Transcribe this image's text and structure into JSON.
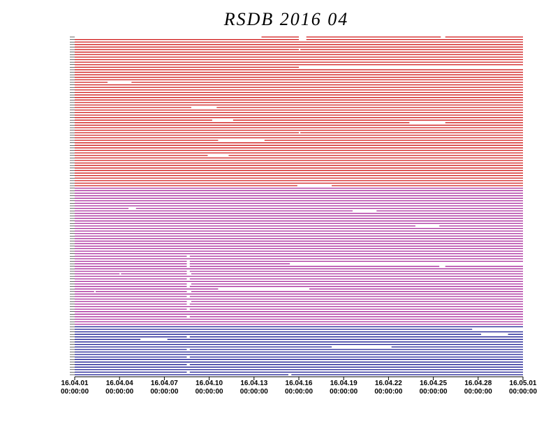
{
  "chart_data": {
    "type": "timeline",
    "title": "RSDB  2016  04",
    "xlim": [
      0,
      30
    ],
    "xticks": [
      {
        "value": 0,
        "label": "16.04.01"
      },
      {
        "value": 3,
        "label": "16.04.04"
      },
      {
        "value": 6,
        "label": "16.04.07"
      },
      {
        "value": 9,
        "label": "16.04.10"
      },
      {
        "value": 12,
        "label": "16.04.13"
      },
      {
        "value": 15,
        "label": "16.04.16"
      },
      {
        "value": 18,
        "label": "16.04.19"
      },
      {
        "value": 21,
        "label": "16.04.22"
      },
      {
        "value": 24,
        "label": "16.04.25"
      },
      {
        "value": 27,
        "label": "16.04.28"
      },
      {
        "value": 30,
        "label": "16.05.01"
      }
    ],
    "xtick_times": [
      "00:00:00",
      "00:00:00",
      "00:00:00",
      "00:00:00",
      "00:00:00",
      "00:00:00",
      "00:00:00",
      "00:00:00",
      "00:00:00",
      "00:00:00",
      "00:00:00"
    ],
    "groups": [
      {
        "color": "#d01818",
        "rows": [
          [
            [
              12.5,
              15
            ],
            [
              15.5,
              24.5
            ],
            [
              24.8,
              30
            ]
          ],
          [
            [
              0,
              15
            ],
            [
              15.5,
              30
            ]
          ],
          [
            [
              0,
              30
            ]
          ],
          [
            [
              0,
              30
            ]
          ],
          [
            [
              0,
              30
            ]
          ],
          [
            [
              0,
              15
            ],
            [
              15.1,
              30
            ]
          ],
          [
            [
              0,
              30
            ]
          ],
          [
            [
              0,
              30
            ]
          ],
          [
            [
              0,
              30
            ]
          ],
          [
            [
              0,
              30
            ]
          ],
          [
            [
              0,
              30
            ]
          ],
          [
            [
              0,
              30
            ]
          ],
          [
            [
              0,
              15
            ]
          ],
          [
            [
              0,
              30
            ]
          ],
          [
            [
              0,
              30
            ]
          ],
          [
            [
              0,
              30
            ]
          ],
          [
            [
              0,
              30
            ]
          ],
          [
            [
              0,
              30
            ]
          ],
          [
            [
              0,
              2.2
            ],
            [
              3.8,
              30
            ]
          ],
          [
            [
              0,
              30
            ]
          ],
          [
            [
              0,
              30
            ]
          ],
          [
            [
              0,
              30
            ]
          ],
          [
            [
              0,
              30
            ]
          ],
          [
            [
              0,
              30
            ]
          ],
          [
            [
              0,
              30
            ]
          ],
          [
            [
              0,
              30
            ]
          ],
          [
            [
              0,
              30
            ]
          ],
          [
            [
              0,
              30
            ]
          ],
          [
            [
              0,
              7.8
            ],
            [
              9.5,
              30
            ]
          ],
          [
            [
              0,
              30
            ]
          ],
          [
            [
              0,
              30
            ]
          ],
          [
            [
              0,
              30
            ]
          ],
          [
            [
              0,
              30
            ]
          ],
          [
            [
              0,
              9.2
            ],
            [
              10.6,
              30
            ]
          ],
          [
            [
              0,
              22.4
            ],
            [
              24.8,
              30
            ]
          ],
          [
            [
              0,
              30
            ]
          ],
          [
            [
              0,
              30
            ]
          ],
          [
            [
              0,
              30
            ]
          ],
          [
            [
              0,
              15
            ],
            [
              15.1,
              30
            ]
          ],
          [
            [
              0,
              30
            ]
          ],
          [
            [
              0,
              30
            ]
          ],
          [
            [
              0,
              9.6
            ],
            [
              12.7,
              30
            ]
          ],
          [
            [
              0,
              30
            ]
          ],
          [
            [
              0,
              30
            ]
          ],
          [
            [
              0,
              30
            ]
          ],
          [
            [
              0,
              30
            ]
          ],
          [
            [
              0,
              30
            ]
          ],
          [
            [
              0,
              8.9
            ],
            [
              10.3,
              30
            ]
          ],
          [
            [
              0,
              30
            ]
          ],
          [
            [
              0,
              30
            ]
          ],
          [
            [
              0,
              30
            ]
          ],
          [
            [
              0,
              30
            ]
          ],
          [
            [
              0,
              30
            ]
          ],
          [
            [
              0,
              30
            ]
          ],
          [
            [
              0,
              30
            ]
          ],
          [
            [
              0,
              30
            ]
          ],
          [
            [
              0,
              30
            ]
          ],
          [
            [
              0,
              30
            ]
          ],
          [
            [
              0,
              30
            ]
          ],
          [
            [
              0,
              14.9
            ],
            [
              17.2,
              30
            ]
          ]
        ]
      },
      {
        "color": "#a8289c",
        "rows": [
          [
            [
              0,
              30
            ]
          ],
          [
            [
              0,
              30
            ]
          ],
          [
            [
              0,
              30
            ]
          ],
          [
            [
              0,
              30
            ]
          ],
          [
            [
              0,
              30
            ]
          ],
          [
            [
              0,
              30
            ]
          ],
          [
            [
              0,
              30
            ]
          ],
          [
            [
              0,
              30
            ]
          ],
          [
            [
              0,
              3.6
            ],
            [
              4.1,
              30
            ]
          ],
          [
            [
              0,
              18.6
            ],
            [
              20.2,
              30
            ]
          ],
          [
            [
              0,
              30
            ]
          ],
          [
            [
              0,
              30
            ]
          ],
          [
            [
              0,
              30
            ]
          ],
          [
            [
              0,
              30
            ]
          ],
          [
            [
              0,
              30
            ]
          ],
          [
            [
              0,
              22.8
            ],
            [
              24.4,
              30
            ]
          ],
          [
            [
              0,
              30
            ]
          ],
          [
            [
              0,
              30
            ]
          ],
          [
            [
              0,
              30
            ]
          ],
          [
            [
              0,
              30
            ]
          ],
          [
            [
              0,
              30
            ]
          ],
          [
            [
              0,
              30
            ]
          ],
          [
            [
              0,
              30
            ]
          ],
          [
            [
              0,
              30
            ]
          ],
          [
            [
              0,
              30
            ]
          ],
          [
            [
              0,
              30
            ]
          ],
          [
            [
              0,
              30
            ]
          ],
          [
            [
              0,
              7.5
            ],
            [
              7.7,
              30
            ]
          ],
          [
            [
              0,
              30
            ]
          ],
          [
            [
              0,
              7.5
            ],
            [
              7.7,
              30
            ]
          ],
          [
            [
              0,
              7.5
            ],
            [
              7.7,
              14.4
            ]
          ],
          [
            [
              0,
              7.5
            ],
            [
              7.7,
              24.4
            ],
            [
              24.8,
              30
            ]
          ],
          [
            [
              0,
              30
            ]
          ],
          [
            [
              0,
              7.5
            ],
            [
              7.7,
              30
            ]
          ],
          [
            [
              0,
              3
            ],
            [
              3.1,
              7.5
            ],
            [
              7.8,
              30
            ]
          ],
          [
            [
              0,
              30
            ]
          ],
          [
            [
              0,
              7.5
            ],
            [
              7.7,
              30
            ]
          ],
          [
            [
              0,
              30
            ]
          ],
          [
            [
              0,
              7.5
            ],
            [
              7.8,
              30
            ]
          ],
          [
            [
              0,
              7.5
            ],
            [
              7.7,
              30
            ]
          ],
          [
            [
              0,
              9.6
            ],
            [
              15.7,
              30
            ]
          ],
          [
            [
              0,
              1.3
            ],
            [
              1.4,
              7.5
            ],
            [
              7.8,
              30
            ]
          ],
          [
            [
              0,
              30
            ]
          ],
          [
            [
              0,
              7.5
            ],
            [
              7.7,
              30
            ]
          ],
          [
            [
              0,
              30
            ]
          ],
          [
            [
              0,
              7.5
            ],
            [
              7.8,
              30
            ]
          ],
          [
            [
              0,
              7.5
            ],
            [
              7.7,
              30
            ]
          ],
          [
            [
              0,
              30
            ]
          ],
          [
            [
              0,
              7.5
            ],
            [
              7.7,
              30
            ]
          ],
          [
            [
              0,
              30
            ]
          ],
          [
            [
              0,
              30
            ]
          ],
          [
            [
              0,
              7.5
            ],
            [
              7.7,
              30
            ]
          ],
          [
            [
              0,
              30
            ]
          ],
          [
            [
              0,
              30
            ]
          ],
          [
            [
              0,
              30
            ]
          ]
        ]
      },
      {
        "color": "#181890",
        "rows": [
          [
            [
              0,
              30
            ]
          ],
          [
            [
              0,
              26.6
            ]
          ],
          [
            [
              0,
              30
            ]
          ],
          [
            [
              0,
              27.2
            ],
            [
              29,
              30
            ]
          ],
          [
            [
              0,
              7.5
            ],
            [
              7.7,
              30
            ]
          ],
          [
            [
              0,
              4.4
            ],
            [
              6.2,
              30
            ]
          ],
          [
            [
              0,
              30
            ]
          ],
          [
            [
              0,
              30
            ]
          ],
          [
            [
              0,
              17.2
            ],
            [
              21.2,
              30
            ]
          ],
          [
            [
              0,
              7.5
            ],
            [
              7.7,
              30
            ]
          ],
          [
            [
              0,
              30
            ]
          ],
          [
            [
              0,
              30
            ]
          ],
          [
            [
              0,
              7.5
            ],
            [
              7.7,
              30
            ]
          ],
          [
            [
              0,
              30
            ]
          ],
          [
            [
              0,
              30
            ]
          ],
          [
            [
              0,
              7.5
            ],
            [
              7.7,
              30
            ]
          ],
          [
            [
              0,
              30
            ]
          ],
          [
            [
              0,
              30
            ]
          ],
          [
            [
              0,
              7.5
            ],
            [
              7.7,
              30
            ]
          ],
          [
            [
              0,
              14.3
            ],
            [
              14.5,
              30
            ]
          ]
        ]
      }
    ]
  }
}
